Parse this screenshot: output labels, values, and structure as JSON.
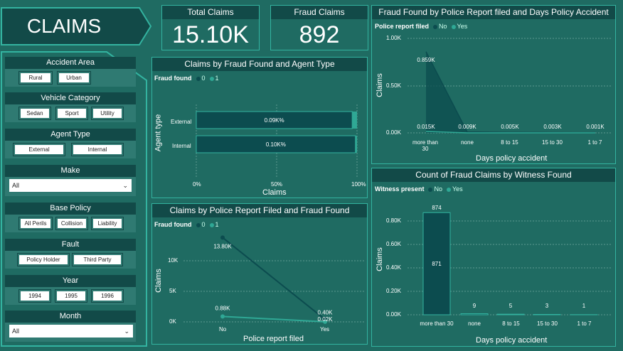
{
  "title": "CLAIMS",
  "colors": {
    "bg": "#1f6b62",
    "dark": "#124a48",
    "accent": "#33b3a0",
    "bar_dark": "#0c4c4f",
    "bar_light": "#2fa895"
  },
  "filters": {
    "accident_area": {
      "title": "Accident Area",
      "options": [
        "Rural",
        "Urban"
      ]
    },
    "vehicle_category": {
      "title": "Vehicle Category",
      "options": [
        "Sedan",
        "Sport",
        "Utility"
      ]
    },
    "agent_type": {
      "title": "Agent Type",
      "options": [
        "External",
        "Internal"
      ]
    },
    "make": {
      "title": "Make",
      "value": "All"
    },
    "base_policy": {
      "title": "Base Policy",
      "options": [
        "All Perils",
        "Collision",
        "Liability"
      ]
    },
    "fault": {
      "title": "Fault",
      "options": [
        "Policy Holder",
        "Third Party"
      ]
    },
    "year": {
      "title": "Year",
      "options": [
        "1994",
        "1995",
        "1996"
      ]
    },
    "month": {
      "title": "Month",
      "value": "All"
    }
  },
  "kpis": {
    "total": {
      "label": "Total Claims",
      "value": "15.10K"
    },
    "fraud": {
      "label": "Fraud Claims",
      "value": "892"
    }
  },
  "chart_data": [
    {
      "id": "agent",
      "type": "bar",
      "title": "Claims by Fraud Found and Agent Type",
      "legend_title": "Fraud found",
      "legend": [
        "0",
        "1"
      ],
      "ylabel": "Agent type",
      "xlabel": "Claims",
      "xticks": [
        "0%",
        "50%",
        "100%"
      ],
      "categories": [
        "External",
        "Internal"
      ],
      "series": [
        {
          "name": "0",
          "values": [
            97,
            99
          ]
        },
        {
          "name": "1",
          "values": [
            3,
            1
          ]
        }
      ],
      "data_labels": [
        "0.09K%",
        "0.10K%"
      ]
    },
    {
      "id": "police",
      "type": "line",
      "title": "Claims by Police Report Filed and Fraud Found",
      "legend_title": "Fraud found",
      "legend": [
        "0",
        "1"
      ],
      "ylabel": "Claims",
      "xlabel": "Police report filed",
      "yticks": [
        "10K",
        "5K",
        "0K"
      ],
      "categories": [
        "No",
        "Yes"
      ],
      "ylim": [
        0,
        15
      ],
      "series": [
        {
          "name": "0",
          "values": [
            13.8,
            0.4
          ]
        },
        {
          "name": "1",
          "values": [
            0.88,
            0.02
          ]
        }
      ],
      "data_labels": {
        "s0": [
          "13.80K",
          "0.40K"
        ],
        "s1": [
          "0.88K",
          "0.02K"
        ]
      }
    },
    {
      "id": "days",
      "type": "area",
      "title": "Fraud Found by Police Report filed and Days Policy Accident",
      "legend_title": "Police report filed",
      "legend": [
        "No",
        "Yes"
      ],
      "ylabel": "Claims",
      "xlabel": "Days policy accident",
      "yticks": [
        "1.00K",
        "0.50K",
        "0.00K"
      ],
      "categories": [
        "more than 30",
        "none",
        "8 to 15",
        "15 to 30",
        "1 to 7"
      ],
      "ylim": [
        0,
        1
      ],
      "series": [
        {
          "name": "No",
          "values": [
            0.859,
            0.009,
            0.005,
            0.003,
            0.001
          ]
        },
        {
          "name": "Yes",
          "values": [
            0.015,
            0.0,
            0.0,
            0.0,
            0.0
          ]
        }
      ],
      "data_labels": {
        "top": [
          "0.859K"
        ],
        "bottom": [
          "0.015K",
          "0.009K",
          "0.005K",
          "0.003K",
          "0.001K"
        ]
      }
    },
    {
      "id": "witness",
      "type": "bar",
      "title": "Count of Fraud Claims by Witness Found",
      "legend_title": "Witness present",
      "legend": [
        "No",
        "Yes"
      ],
      "ylabel": "Claims",
      "xlabel": "Days policy accident",
      "yticks": [
        "0.80K",
        "0.60K",
        "0.40K",
        "0.20K",
        "0.00K"
      ],
      "categories": [
        "more than 30",
        "none",
        "8 to 15",
        "15 to 30",
        "1 to 7"
      ],
      "ylim": [
        0,
        0.95
      ],
      "series": [
        {
          "name": "No",
          "values": [
            0.871,
            0.009,
            0.005,
            0.003,
            0.001
          ]
        },
        {
          "name": "Yes",
          "values": [
            0.003,
            0,
            0,
            0,
            0
          ]
        }
      ],
      "totals": [
        "874",
        "9",
        "5",
        "3",
        "1"
      ],
      "inner_label": "871"
    }
  ]
}
